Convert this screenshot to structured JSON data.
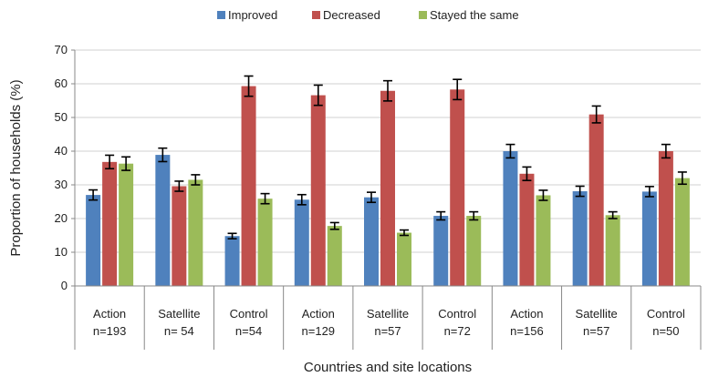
{
  "chart_data": {
    "type": "bar",
    "title": "",
    "xlabel": "Countries and site locations",
    "ylabel": "Proportion of households (%)",
    "ylim": [
      0,
      70
    ],
    "yticks": [
      0,
      10,
      20,
      30,
      40,
      50,
      60,
      70
    ],
    "grid": true,
    "legend_position": "top",
    "categories": [
      {
        "line1": "Action",
        "line2": "n=193"
      },
      {
        "line1": "Satellite",
        "line2": "n= 54"
      },
      {
        "line1": "Control",
        "line2": "n=54"
      },
      {
        "line1": "Action",
        "line2": "n=129"
      },
      {
        "line1": "Satellite",
        "line2": "n=57"
      },
      {
        "line1": "Control",
        "line2": "n=72"
      },
      {
        "line1": "Action",
        "line2": "n=156"
      },
      {
        "line1": "Satellite",
        "line2": "n=57"
      },
      {
        "line1": "Control",
        "line2": "n=50"
      }
    ],
    "series": [
      {
        "name": "Improved",
        "color": "#4F81BD",
        "values": [
          27,
          38.9,
          14.8,
          25.6,
          26.3,
          20.8,
          40.0,
          28.1,
          28.0
        ],
        "errors": [
          1.5,
          2.0,
          0.8,
          1.5,
          1.5,
          1.2,
          2.0,
          1.5,
          1.5
        ]
      },
      {
        "name": "Decreased",
        "color": "#C0504D",
        "values": [
          36.8,
          29.6,
          59.3,
          56.6,
          57.9,
          58.3,
          33.3,
          50.9,
          40.0
        ],
        "errors": [
          2.0,
          1.5,
          3.0,
          3.0,
          3.0,
          3.0,
          2.0,
          2.5,
          2.0
        ]
      },
      {
        "name": "Stayed the same",
        "color": "#9BBB59",
        "values": [
          36.3,
          31.5,
          25.9,
          17.8,
          15.8,
          20.8,
          26.9,
          21.0,
          32.0
        ],
        "errors": [
          2.0,
          1.5,
          1.5,
          1.0,
          0.8,
          1.2,
          1.5,
          1.0,
          1.8
        ]
      }
    ]
  }
}
